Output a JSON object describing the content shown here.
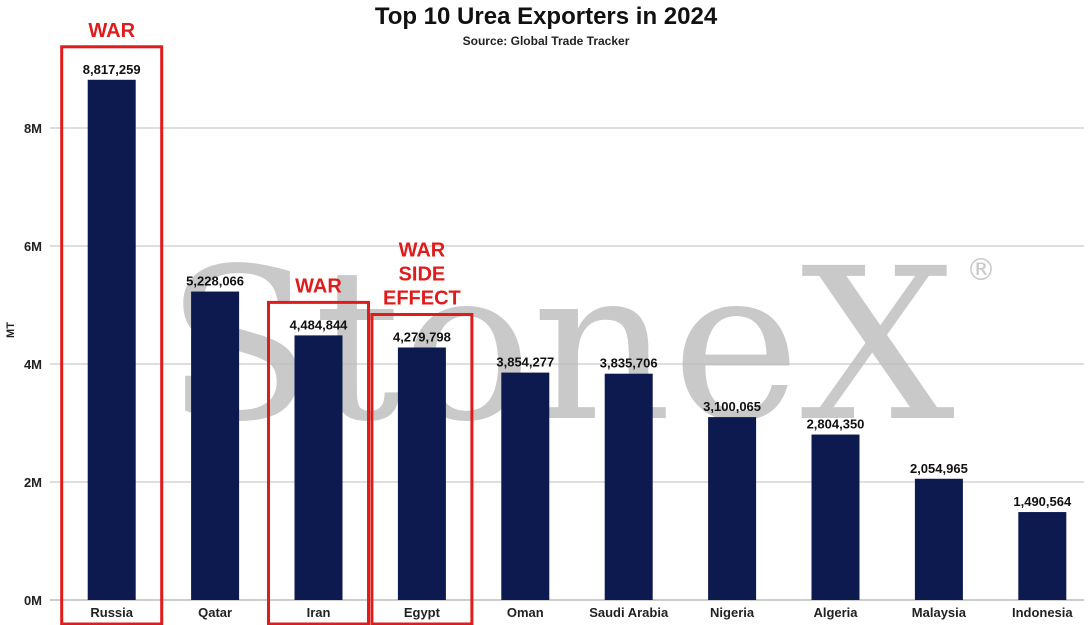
{
  "chart_data": {
    "type": "bar",
    "title": "Top 10 Urea Exporters in 2024",
    "subtitle": "Source: Global Trade Tracker",
    "ylabel": "MT",
    "xlabel": "",
    "ylim": [
      0,
      9200000
    ],
    "yticks": [
      {
        "value": 0,
        "label": "0M"
      },
      {
        "value": 2000000,
        "label": "2M"
      },
      {
        "value": 4000000,
        "label": "4M"
      },
      {
        "value": 6000000,
        "label": "6M"
      },
      {
        "value": 8000000,
        "label": "8M"
      }
    ],
    "grid": true,
    "bar_color": "#0d1a4f",
    "highlight_color": "#e01b1b",
    "categories": [
      "Russia",
      "Qatar",
      "Iran",
      "Egypt",
      "Oman",
      "Saudi Arabia",
      "Nigeria",
      "Algeria",
      "Malaysia",
      "Indonesia"
    ],
    "values": [
      8817259,
      5228066,
      4484844,
      4279798,
      3854277,
      3835706,
      3100065,
      2804350,
      2054965,
      1490564
    ],
    "value_labels": [
      "8,817,259",
      "5,228,066",
      "4,484,844",
      "4,279,798",
      "3,854,277",
      "3,835,706",
      "3,100,065",
      "2,804,350",
      "2,054,965",
      "1,490,564"
    ],
    "annotations": [
      {
        "category": "Russia",
        "lines": [
          "WAR"
        ]
      },
      {
        "category": "Iran",
        "lines": [
          "WAR"
        ]
      },
      {
        "category": "Egypt",
        "lines": [
          "WAR",
          "SIDE",
          "EFFECT"
        ]
      }
    ],
    "watermark": "StoneX",
    "watermark_mark": "®"
  }
}
